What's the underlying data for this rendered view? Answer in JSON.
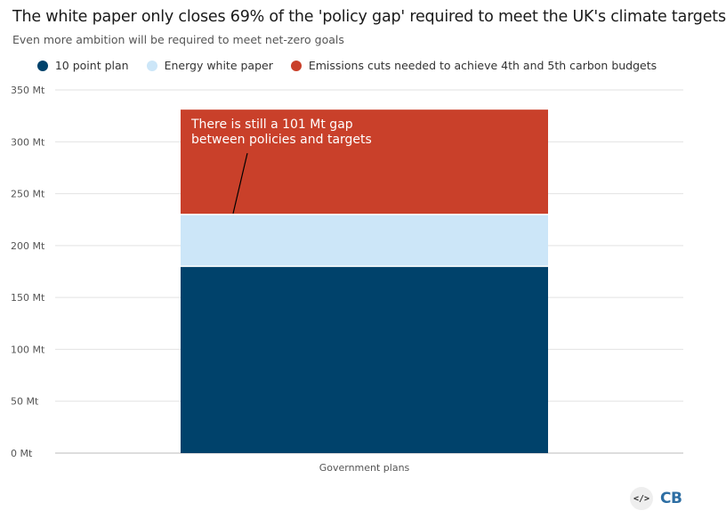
{
  "chart_data": {
    "type": "bar",
    "stacked": true,
    "title": "The white paper only closes 69% of the 'policy gap' required to meet the UK's climate targets",
    "subtitle": "Even more ambition will be required to meet net-zero goals",
    "categories": [
      "Government plans"
    ],
    "series": [
      {
        "name": "10 point plan",
        "values": [
          180
        ],
        "color": "#00426b"
      },
      {
        "name": "Energy white paper",
        "values": [
          50
        ],
        "color": "#cce6f8"
      },
      {
        "name": "Emissions cuts needed to achieve 4th and 5th carbon budgets",
        "values": [
          101
        ],
        "color": "#c9402a"
      }
    ],
    "ylim": [
      0,
      350
    ],
    "yticks": [
      0,
      50,
      100,
      150,
      200,
      250,
      300,
      350
    ],
    "ytick_labels": [
      "0 Mt",
      "50 Mt",
      "100 Mt",
      "150 Mt",
      "200 Mt",
      "250 Mt",
      "300 Mt",
      "350 Mt"
    ],
    "xlabel": "",
    "ylabel": "",
    "grid": true,
    "legend_position": "top",
    "annotation": {
      "lines": [
        "There is still a 101 Mt gap",
        "between policies and targets"
      ],
      "color": "#ffffff"
    }
  },
  "logo": {
    "icon_text": "</>",
    "text": "CB"
  }
}
